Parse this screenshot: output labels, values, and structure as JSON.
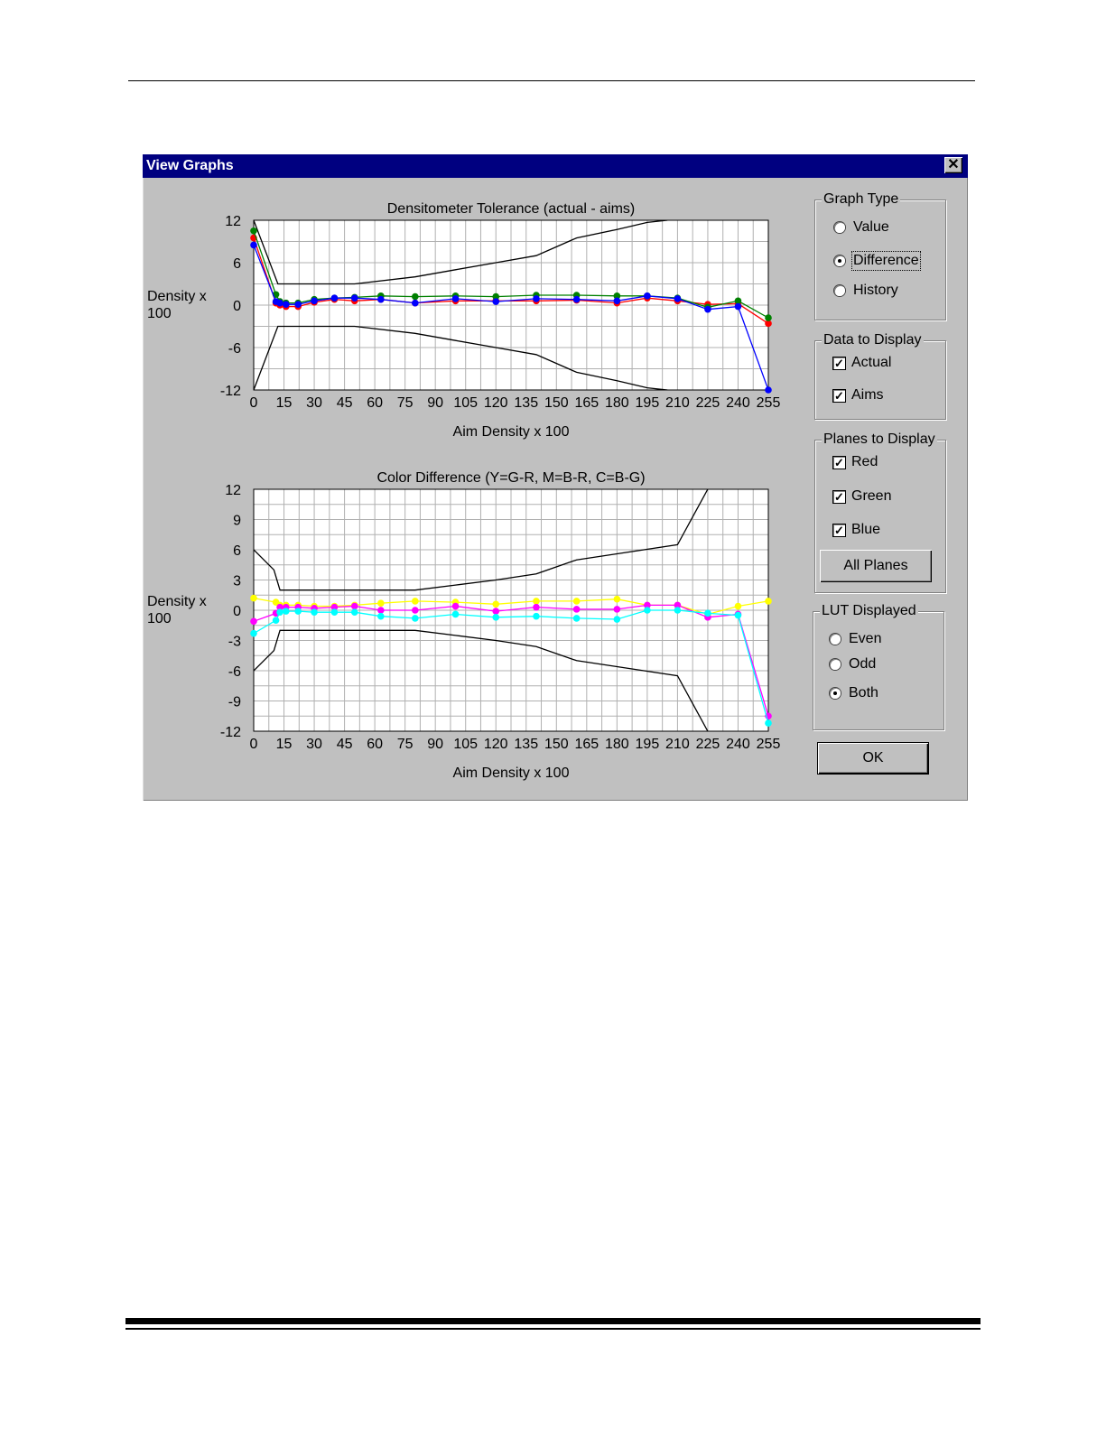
{
  "dialog": {
    "title": "View Graphs",
    "close_glyph": "✕"
  },
  "graph_type": {
    "legend": "Graph Type",
    "options": [
      {
        "label": "Value",
        "selected": false
      },
      {
        "label": "Difference",
        "selected": true
      },
      {
        "label": "History",
        "selected": false
      }
    ]
  },
  "data_to_display": {
    "legend": "Data to Display",
    "options": [
      {
        "label": "Actual",
        "checked": true
      },
      {
        "label": "Aims",
        "checked": true
      }
    ]
  },
  "planes_to_display": {
    "legend": "Planes to Display",
    "options": [
      {
        "label": "Red",
        "checked": true
      },
      {
        "label": "Green",
        "checked": true
      },
      {
        "label": "Blue",
        "checked": true
      }
    ],
    "all_planes_label": "All Planes"
  },
  "lut_displayed": {
    "legend": "LUT Displayed",
    "options": [
      {
        "label": "Even",
        "selected": false
      },
      {
        "label": "Odd",
        "selected": false
      },
      {
        "label": "Both",
        "selected": true
      }
    ]
  },
  "ok_label": "OK",
  "check_glyph": "✓",
  "colors": {
    "red": "#ff0000",
    "green": "#008000",
    "blue": "#0000ff",
    "yellow": "#ffff00",
    "magenta": "#ff00ff",
    "cyan": "#00ffff",
    "limit": "#000000",
    "title_bar": "#000080",
    "face": "#c0c0c0"
  },
  "chart_data": [
    {
      "type": "line",
      "title": "Densitometer Tolerance (actual - aims)",
      "xlabel": "Aim Density x 100",
      "ylabel": "Density x 100",
      "xlim": [
        0,
        255
      ],
      "ylim": [
        -12,
        12
      ],
      "xticks": [
        0,
        15,
        30,
        45,
        60,
        75,
        90,
        105,
        120,
        135,
        150,
        165,
        180,
        195,
        210,
        225,
        240,
        255
      ],
      "yticks": [
        12,
        6,
        0,
        -6,
        -12
      ],
      "grid": true,
      "series": [
        {
          "color_key": "limit",
          "markers": false,
          "points": [
            [
              0,
              12
            ],
            [
              12,
              3
            ],
            [
              50,
              3
            ],
            [
              80,
              4
            ],
            [
              100,
              5
            ],
            [
              120,
              6
            ],
            [
              140,
              7
            ],
            [
              160,
              9.5
            ],
            [
              180,
              10.7
            ],
            [
              195,
              11.7
            ],
            [
              205,
              12
            ]
          ]
        },
        {
          "color_key": "limit",
          "markers": false,
          "points": [
            [
              0,
              -12
            ],
            [
              12,
              -3
            ],
            [
              50,
              -3
            ],
            [
              80,
              -4
            ],
            [
              100,
              -5
            ],
            [
              120,
              -6
            ],
            [
              140,
              -7
            ],
            [
              160,
              -9.5
            ],
            [
              180,
              -10.7
            ],
            [
              195,
              -11.7
            ],
            [
              205,
              -12
            ]
          ]
        },
        {
          "color_key": "red",
          "markers": true,
          "points": [
            [
              0,
              9.5
            ],
            [
              11,
              0.3
            ],
            [
              13,
              0
            ],
            [
              16,
              -0.2
            ],
            [
              22,
              -0.2
            ],
            [
              30,
              0.4
            ],
            [
              40,
              0.8
            ],
            [
              50,
              0.6
            ],
            [
              63,
              0.8
            ],
            [
              80,
              0.3
            ],
            [
              100,
              0.6
            ],
            [
              120,
              0.6
            ],
            [
              140,
              0.6
            ],
            [
              160,
              0.7
            ],
            [
              180,
              0.3
            ],
            [
              195,
              1
            ],
            [
              210,
              0.6
            ],
            [
              225,
              0.1
            ],
            [
              240,
              0.2
            ],
            [
              255,
              -2.6
            ]
          ]
        },
        {
          "color_key": "green",
          "markers": true,
          "points": [
            [
              0,
              10.5
            ],
            [
              11,
              1.5
            ],
            [
              13,
              0.5
            ],
            [
              16,
              0.3
            ],
            [
              22,
              0.3
            ],
            [
              30,
              0.8
            ],
            [
              40,
              1
            ],
            [
              50,
              1.1
            ],
            [
              63,
              1.3
            ],
            [
              80,
              1.2
            ],
            [
              100,
              1.3
            ],
            [
              120,
              1.2
            ],
            [
              140,
              1.4
            ],
            [
              160,
              1.4
            ],
            [
              180,
              1.3
            ],
            [
              195,
              1.3
            ],
            [
              210,
              1
            ],
            [
              225,
              -0.3
            ],
            [
              240,
              0.6
            ],
            [
              255,
              -1.8
            ]
          ]
        },
        {
          "color_key": "blue",
          "markers": true,
          "points": [
            [
              0,
              8.5
            ],
            [
              11,
              0.5
            ],
            [
              13,
              0.3
            ],
            [
              16,
              0.1
            ],
            [
              22,
              0.1
            ],
            [
              30,
              0.6
            ],
            [
              40,
              1
            ],
            [
              50,
              1
            ],
            [
              63,
              0.8
            ],
            [
              80,
              0.3
            ],
            [
              100,
              0.9
            ],
            [
              120,
              0.5
            ],
            [
              140,
              0.9
            ],
            [
              160,
              0.8
            ],
            [
              180,
              0.6
            ],
            [
              195,
              1.3
            ],
            [
              210,
              0.9
            ],
            [
              225,
              -0.6
            ],
            [
              240,
              -0.2
            ],
            [
              255,
              -12
            ]
          ]
        }
      ]
    },
    {
      "type": "line",
      "title": "Color Difference (Y=G-R, M=B-R, C=B-G)",
      "xlabel": "Aim Density x 100",
      "ylabel": "Density x 100",
      "xlim": [
        0,
        255
      ],
      "ylim": [
        -12,
        12
      ],
      "xticks": [
        0,
        15,
        30,
        45,
        60,
        75,
        90,
        105,
        120,
        135,
        150,
        165,
        180,
        195,
        210,
        225,
        240,
        255
      ],
      "yticks": [
        12,
        9,
        6,
        3,
        0,
        -3,
        -6,
        -9,
        -12
      ],
      "grid": true,
      "series": [
        {
          "color_key": "limit",
          "markers": false,
          "points": [
            [
              0,
              6
            ],
            [
              10,
              4
            ],
            [
              13,
              2
            ],
            [
              80,
              2
            ],
            [
              100,
              2.5
            ],
            [
              120,
              3
            ],
            [
              140,
              3.6
            ],
            [
              160,
              5
            ],
            [
              180,
              5.6
            ],
            [
              210,
              6.5
            ],
            [
              225,
              12
            ]
          ]
        },
        {
          "color_key": "limit",
          "markers": false,
          "points": [
            [
              0,
              -6
            ],
            [
              10,
              -4
            ],
            [
              13,
              -2
            ],
            [
              80,
              -2
            ],
            [
              100,
              -2.5
            ],
            [
              120,
              -3
            ],
            [
              140,
              -3.6
            ],
            [
              160,
              -5
            ],
            [
              180,
              -5.6
            ],
            [
              210,
              -6.5
            ],
            [
              225,
              -12
            ]
          ]
        },
        {
          "color_key": "yellow",
          "markers": true,
          "points": [
            [
              0,
              1.2
            ],
            [
              11,
              0.8
            ],
            [
              13,
              0.5
            ],
            [
              16,
              0.5
            ],
            [
              22,
              0.5
            ],
            [
              30,
              0.4
            ],
            [
              40,
              0.4
            ],
            [
              50,
              0.5
            ],
            [
              63,
              0.7
            ],
            [
              80,
              0.9
            ],
            [
              100,
              0.8
            ],
            [
              120,
              0.6
            ],
            [
              140,
              0.9
            ],
            [
              160,
              0.9
            ],
            [
              180,
              1.1
            ],
            [
              195,
              0.5
            ],
            [
              210,
              0.5
            ],
            [
              225,
              -0.4
            ],
            [
              240,
              0.4
            ],
            [
              255,
              0.9
            ]
          ]
        },
        {
          "color_key": "magenta",
          "markers": true,
          "points": [
            [
              0,
              -1.1
            ],
            [
              11,
              -0.3
            ],
            [
              13,
              0.3
            ],
            [
              16,
              0.3
            ],
            [
              22,
              0.3
            ],
            [
              30,
              0.2
            ],
            [
              40,
              0.3
            ],
            [
              50,
              0.4
            ],
            [
              63,
              0
            ],
            [
              80,
              0
            ],
            [
              100,
              0.4
            ],
            [
              120,
              -0.1
            ],
            [
              140,
              0.3
            ],
            [
              160,
              0.1
            ],
            [
              180,
              0.1
            ],
            [
              195,
              0.5
            ],
            [
              210,
              0.5
            ],
            [
              225,
              -0.7
            ],
            [
              240,
              -0.4
            ],
            [
              255,
              -10.5
            ]
          ]
        },
        {
          "color_key": "cyan",
          "markers": true,
          "points": [
            [
              0,
              -2.3
            ],
            [
              11,
              -1
            ],
            [
              13,
              -0.2
            ],
            [
              16,
              -0.1
            ],
            [
              22,
              -0.1
            ],
            [
              30,
              -0.2
            ],
            [
              40,
              -0.2
            ],
            [
              50,
              -0.2
            ],
            [
              63,
              -0.6
            ],
            [
              80,
              -0.8
            ],
            [
              100,
              -0.4
            ],
            [
              120,
              -0.7
            ],
            [
              140,
              -0.6
            ],
            [
              160,
              -0.8
            ],
            [
              180,
              -0.9
            ],
            [
              195,
              0
            ],
            [
              210,
              0
            ],
            [
              225,
              -0.3
            ],
            [
              240,
              -0.5
            ],
            [
              255,
              -11.2
            ]
          ]
        }
      ]
    }
  ]
}
